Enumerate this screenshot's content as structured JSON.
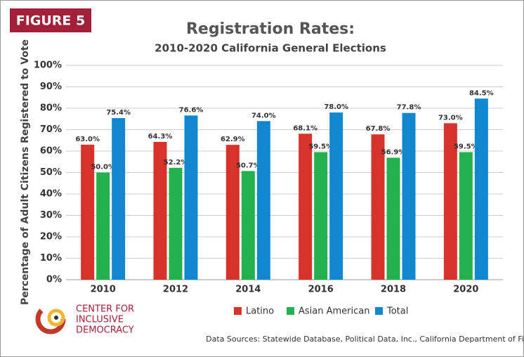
{
  "chart_data": {
    "type": "bar",
    "figure_label": "FIGURE 5",
    "title": "Registration Rates:",
    "subtitle": "2010-2020 California General Elections",
    "y_label": "Percentage of Adult Citizens Registered to Vote",
    "categories": [
      "2010",
      "2012",
      "2014",
      "2016",
      "2018",
      "2020"
    ],
    "series": [
      {
        "name": "Latino",
        "color": "#d7332a",
        "values": [
          63.0,
          64.3,
          62.9,
          68.1,
          67.8,
          73.0
        ],
        "value_labels": [
          "63.0%",
          "64.3%",
          "62.9%",
          "68.1%",
          "67.8%",
          "73.0%"
        ]
      },
      {
        "name": "Asian American",
        "color": "#22b14c",
        "values": [
          50.0,
          52.2,
          50.7,
          59.5,
          56.9,
          59.5
        ],
        "value_labels": [
          "50.0%",
          "52.2%",
          "50.7%",
          "59.5%",
          "56.9%",
          "59.5%"
        ]
      },
      {
        "name": "Total",
        "color": "#1187cf",
        "values": [
          75.4,
          76.6,
          74.0,
          78.0,
          77.8,
          84.5
        ],
        "value_labels": [
          "75.4%",
          "76.6%",
          "74.0%",
          "78.0%",
          "77.8%",
          "84.5%"
        ]
      }
    ],
    "ylim": [
      0,
      100
    ],
    "yticks": [
      {
        "value": 0,
        "label": "0%"
      },
      {
        "value": 10,
        "label": "10%"
      },
      {
        "value": 20,
        "label": "20%"
      },
      {
        "value": 30,
        "label": "30%"
      },
      {
        "value": 40,
        "label": "40%"
      },
      {
        "value": 50,
        "label": "50%"
      },
      {
        "value": 60,
        "label": "60%"
      },
      {
        "value": 70,
        "label": "70%"
      },
      {
        "value": 80,
        "label": "80%"
      },
      {
        "value": 90,
        "label": "90%"
      },
      {
        "value": 100,
        "label": "100%"
      }
    ],
    "grid": true,
    "legend": "bottom",
    "logo_text": [
      "CENTER FOR",
      "INCLUSIVE",
      "DEMOCRACY"
    ],
    "source": "Data Sources: Statewide Database, Political Data, Inc., California Department of Finance."
  }
}
